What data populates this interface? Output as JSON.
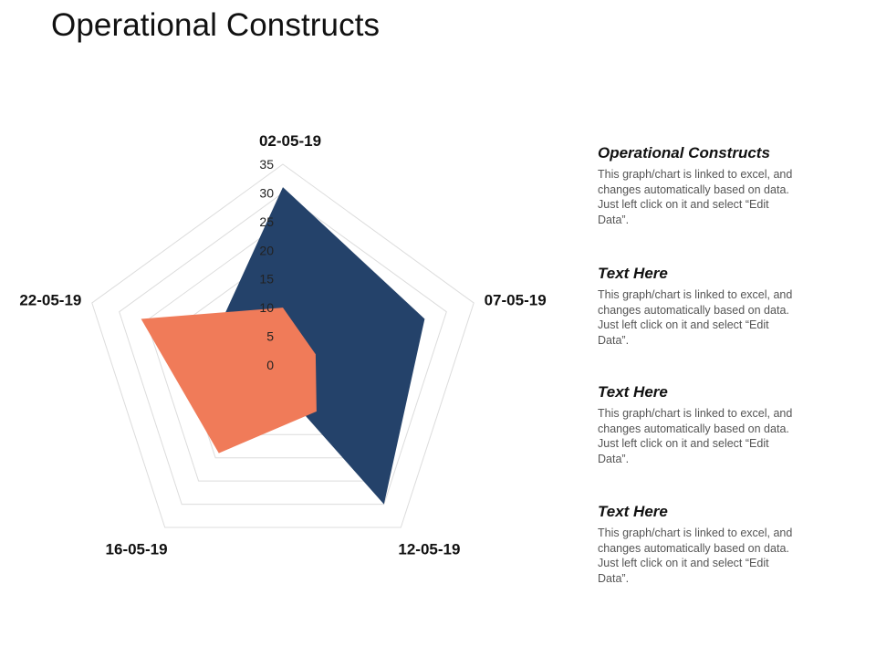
{
  "page": {
    "title": "Operational Constructs"
  },
  "chart_data": {
    "type": "radar",
    "categories": [
      "02-05-19",
      "07-05-19",
      "12-05-19",
      "16-05-19",
      "22-05-19"
    ],
    "rlim": [
      0,
      35
    ],
    "ticks": [
      0,
      5,
      10,
      15,
      20,
      25,
      30,
      35
    ],
    "grid": true,
    "series": [
      {
        "values": [
          31,
          26,
          30,
          3,
          13
        ],
        "color": "#24426A"
      },
      {
        "values": [
          10,
          6,
          10,
          19,
          26
        ],
        "color": "#F07B59"
      }
    ]
  },
  "sidebar": {
    "blocks": [
      {
        "heading": "Operational Constructs",
        "text": "This graph/chart is linked to excel, and changes automatically based on data. Just left click on it and select “Edit Data”."
      },
      {
        "heading": "Text Here",
        "text": "This graph/chart is linked to excel, and changes automatically based on data. Just left click on it and select “Edit Data”."
      },
      {
        "heading": "Text Here",
        "text": "This graph/chart is linked to excel, and changes automatically based on data. Just left click on it and select “Edit Data”."
      },
      {
        "heading": "Text Here",
        "text": "This graph/chart is linked to excel, and changes automatically based on data. Just left click on it and select “Edit Data”."
      }
    ]
  }
}
